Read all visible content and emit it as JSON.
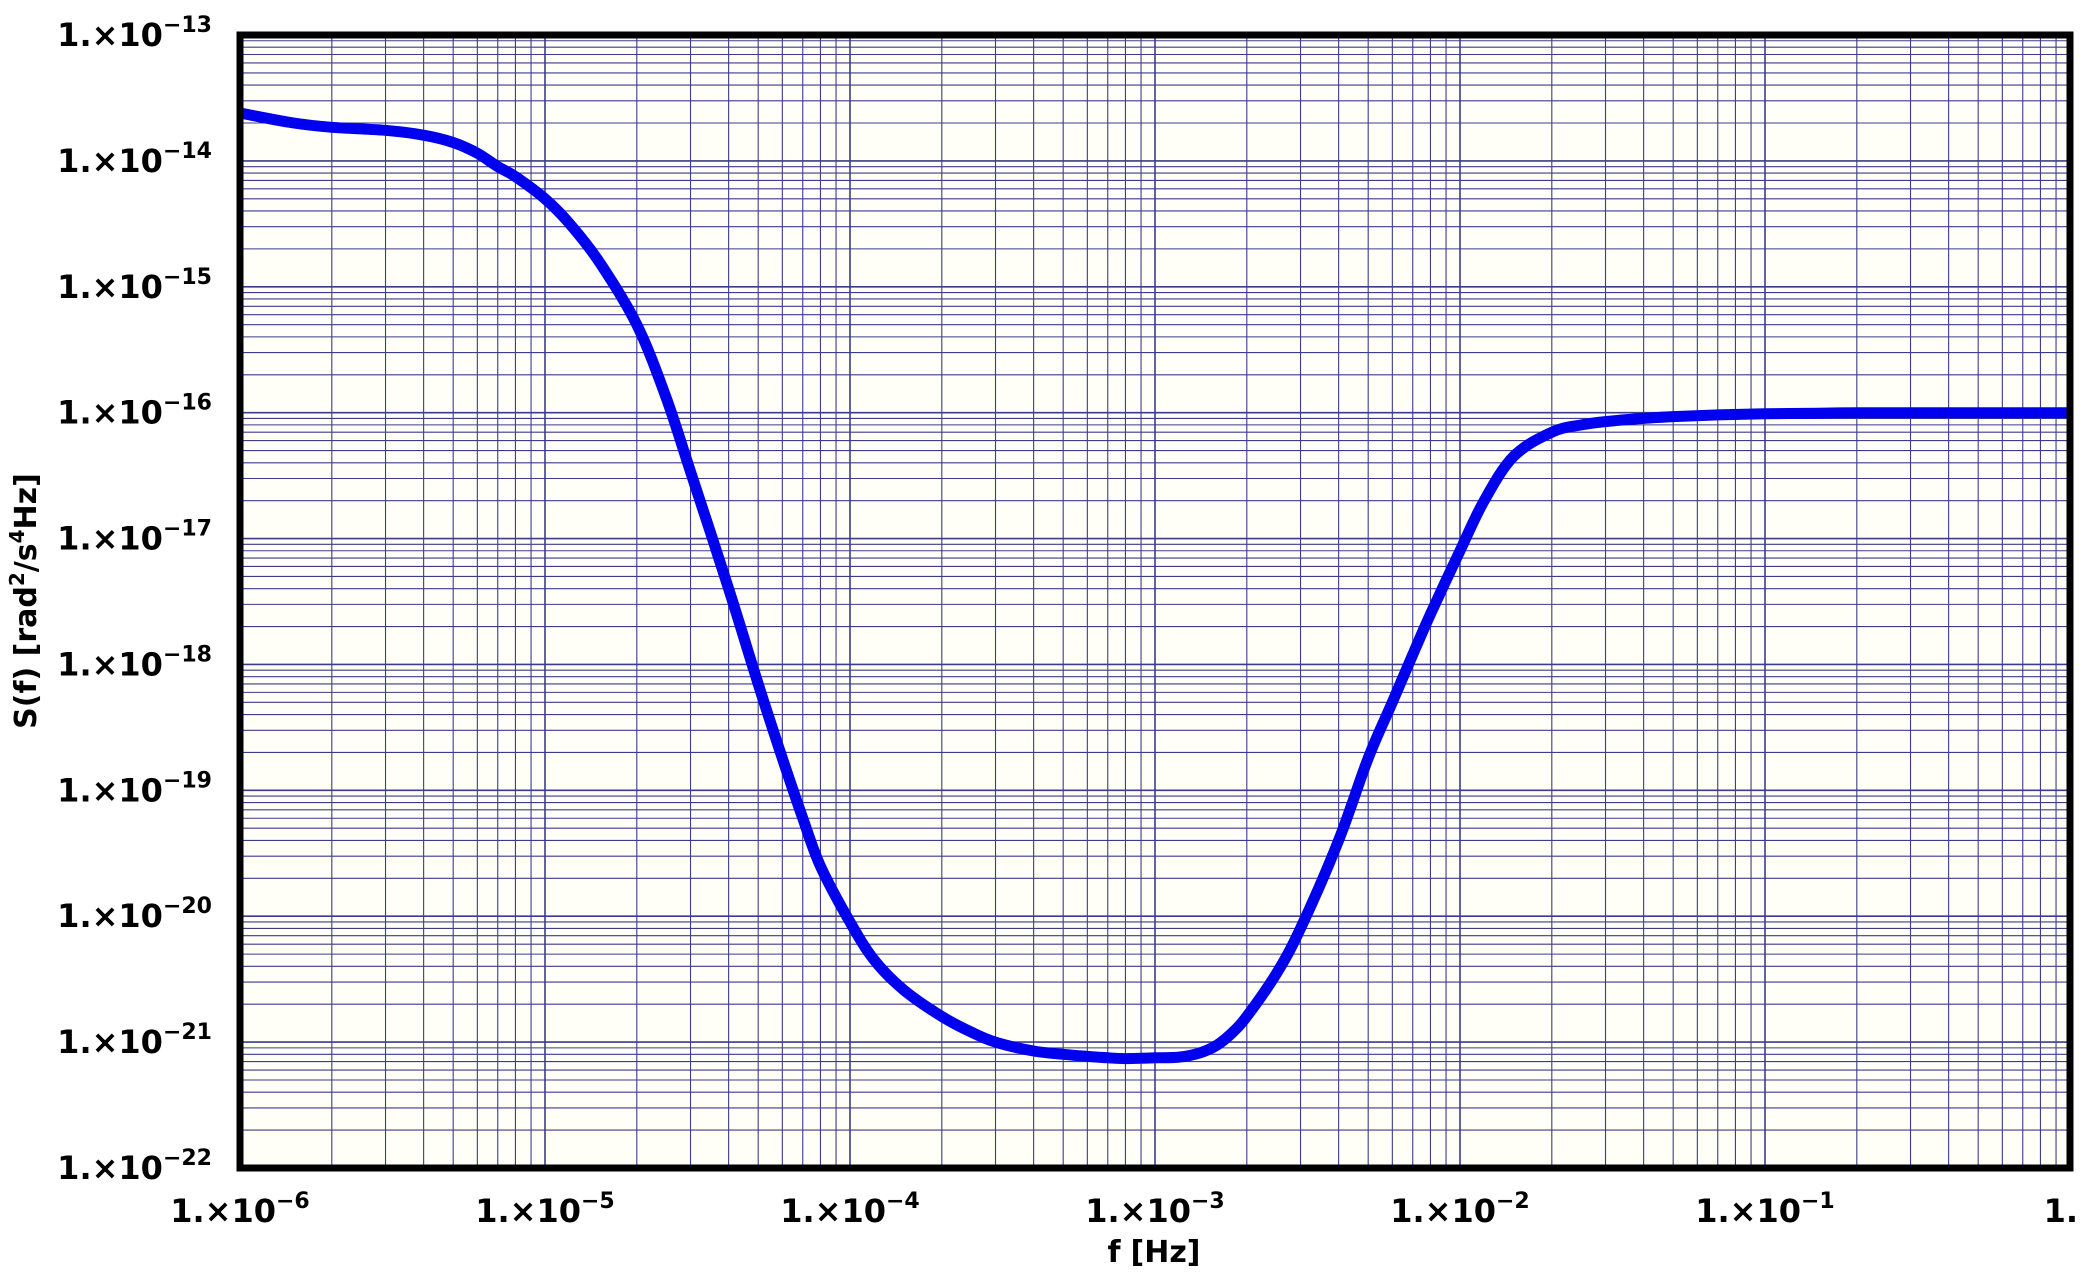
{
  "chart_data": {
    "type": "line",
    "title": "",
    "xlabel": {
      "main": "f",
      "unit": "[Hz]"
    },
    "ylabel": {
      "pre": "S(f) [rad",
      "sup1": "2",
      "mid": "/s",
      "sup2": "4",
      "post": "Hz]"
    },
    "x_scale": "log",
    "y_scale": "log",
    "xlim": [
      1e-06,
      1
    ],
    "ylim": [
      1e-22,
      1e-13
    ],
    "grid": true,
    "legend": "none",
    "colors": {
      "series": "#0000ee",
      "grid": "#3c3c8c",
      "plot_bg": "#fffff8",
      "frame": "#000000"
    },
    "x_ticks": [
      {
        "value": 1e-06,
        "mantissa": "1.×10",
        "exp": "−6"
      },
      {
        "value": 1e-05,
        "mantissa": "1.×10",
        "exp": "−5"
      },
      {
        "value": 0.0001,
        "mantissa": "1.×10",
        "exp": "−4"
      },
      {
        "value": 0.001,
        "mantissa": "1.×10",
        "exp": "−3"
      },
      {
        "value": 0.01,
        "mantissa": "1.×10",
        "exp": "−2"
      },
      {
        "value": 0.1,
        "mantissa": "1.×10",
        "exp": "−1"
      },
      {
        "value": 1,
        "mantissa": "1.",
        "exp": ""
      }
    ],
    "y_ticks": [
      {
        "value": 1e-13,
        "mantissa": "1.×10",
        "exp": "−13"
      },
      {
        "value": 1e-14,
        "mantissa": "1.×10",
        "exp": "−14"
      },
      {
        "value": 1e-15,
        "mantissa": "1.×10",
        "exp": "−15"
      },
      {
        "value": 1e-16,
        "mantissa": "1.×10",
        "exp": "−16"
      },
      {
        "value": 1e-17,
        "mantissa": "1.×10",
        "exp": "−17"
      },
      {
        "value": 1e-18,
        "mantissa": "1.×10",
        "exp": "−18"
      },
      {
        "value": 1e-19,
        "mantissa": "1.×10",
        "exp": "−19"
      },
      {
        "value": 1e-20,
        "mantissa": "1.×10",
        "exp": "−20"
      },
      {
        "value": 1e-21,
        "mantissa": "1.×10",
        "exp": "−21"
      },
      {
        "value": 1e-22,
        "mantissa": "1.×10",
        "exp": "−22"
      }
    ],
    "series": [
      {
        "x": [
          1e-06,
          1.5e-06,
          2e-06,
          3e-06,
          4e-06,
          5e-06,
          6e-06,
          7e-06,
          8e-06,
          1e-05,
          1.2e-05,
          1.5e-05,
          2e-05,
          2.5e-05,
          3e-05,
          4e-05,
          5e-05,
          6e-05,
          7e-05,
          8e-05,
          0.0001,
          0.00012,
          0.00015,
          0.0002,
          0.00025,
          0.0003,
          0.0004,
          0.0005,
          0.0006,
          0.0007,
          0.0008,
          0.001,
          0.0012,
          0.0014,
          0.0016,
          0.0018,
          0.002,
          0.0025,
          0.003,
          0.004,
          0.005,
          0.006,
          0.007,
          0.008,
          0.01,
          0.012,
          0.015,
          0.02,
          0.025,
          0.03,
          0.04,
          0.05,
          0.07,
          0.1,
          0.15,
          0.2,
          0.3,
          0.5,
          0.7,
          1
        ],
        "y": [
          2.4e-14,
          2e-14,
          1.85e-14,
          1.75e-14,
          1.6e-14,
          1.4e-14,
          1.15e-14,
          9e-15,
          7.5e-15,
          5e-15,
          3.2e-15,
          1.6e-15,
          5e-16,
          1.3e-16,
          3.4e-17,
          4e-18,
          7e-19,
          1.8e-19,
          6e-20,
          2.5e-20,
          9e-21,
          4.5e-21,
          2.6e-21,
          1.6e-21,
          1.2e-21,
          1e-21,
          8.5e-22,
          8e-22,
          7.7e-22,
          7.5e-22,
          7.4e-22,
          7.5e-22,
          7.6e-22,
          8.2e-22,
          9.5e-22,
          1.2e-21,
          1.6e-21,
          3.5e-21,
          8e-21,
          4e-20,
          1.8e-19,
          5e-19,
          1.2e-18,
          2.5e-18,
          8e-18,
          2e-17,
          4.5e-17,
          7e-17,
          8e-17,
          8.5e-17,
          9e-17,
          9.3e-17,
          9.6e-17,
          9.8e-17,
          9.9e-17,
          1e-16,
          1e-16,
          1e-16,
          1e-16,
          1e-16
        ]
      }
    ]
  }
}
